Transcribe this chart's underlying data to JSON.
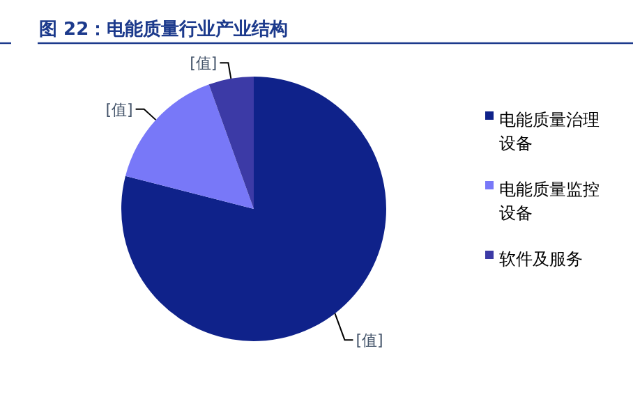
{
  "chart_data": {
    "type": "pie",
    "title": "图 22：电能质量行业产业结构",
    "categories": [
      "电能质量治理设备",
      "电能质量监控设备",
      "软件及服务"
    ],
    "values": [
      79,
      15.5,
      5.5
    ],
    "colors": [
      "#0f228a",
      "#7878f8",
      "#3c3aa6"
    ],
    "value_labels": [
      "[值]",
      "[值]",
      "[值]"
    ],
    "legend": "right"
  }
}
